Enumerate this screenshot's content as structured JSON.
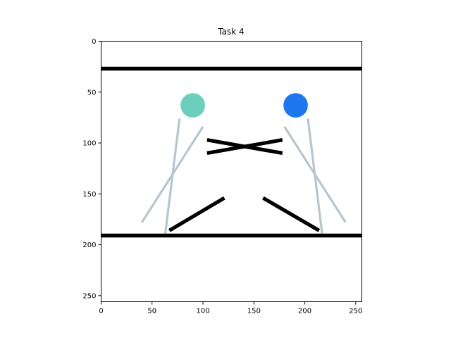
{
  "chart_data": {
    "type": "scatter",
    "title": "Task 4",
    "xlabel": "",
    "ylabel": "",
    "xlim": [
      0,
      256
    ],
    "ylim": [
      256,
      0
    ],
    "y_inverted": true,
    "grid": false,
    "x_ticks": [
      0,
      50,
      100,
      150,
      200,
      250
    ],
    "y_ticks": [
      0,
      50,
      100,
      150,
      200,
      250
    ],
    "colors": {
      "wall": "#000000",
      "stick": "#b6c6cf",
      "ball_left": "#6ccfbd",
      "ball_right": "#1f77f0"
    },
    "walls": [
      {
        "x1": 0,
        "y1": 27,
        "x2": 256,
        "y2": 27,
        "kind": "wall"
      },
      {
        "x1": 0,
        "y1": 191,
        "x2": 256,
        "y2": 191,
        "kind": "wall"
      },
      {
        "x1": 104,
        "y1": 97,
        "x2": 178,
        "y2": 110,
        "kind": "wall"
      },
      {
        "x1": 104,
        "y1": 110,
        "x2": 178,
        "y2": 97,
        "kind": "wall"
      },
      {
        "x1": 67,
        "y1": 186,
        "x2": 121,
        "y2": 154,
        "kind": "wall"
      },
      {
        "x1": 159,
        "y1": 154,
        "x2": 214,
        "y2": 186,
        "kind": "wall"
      }
    ],
    "sticks": [
      {
        "x1": 77,
        "y1": 76,
        "x2": 63,
        "y2": 189,
        "kind": "stick"
      },
      {
        "x1": 100,
        "y1": 84,
        "x2": 40,
        "y2": 178,
        "kind": "stick"
      },
      {
        "x1": 203,
        "y1": 76,
        "x2": 217,
        "y2": 189,
        "kind": "stick"
      },
      {
        "x1": 180,
        "y1": 84,
        "x2": 240,
        "y2": 178,
        "kind": "stick"
      }
    ],
    "balls": [
      {
        "x": 90,
        "y": 63,
        "r": 12,
        "color": "ball_left"
      },
      {
        "x": 191,
        "y": 63,
        "r": 12,
        "color": "ball_right"
      }
    ]
  }
}
